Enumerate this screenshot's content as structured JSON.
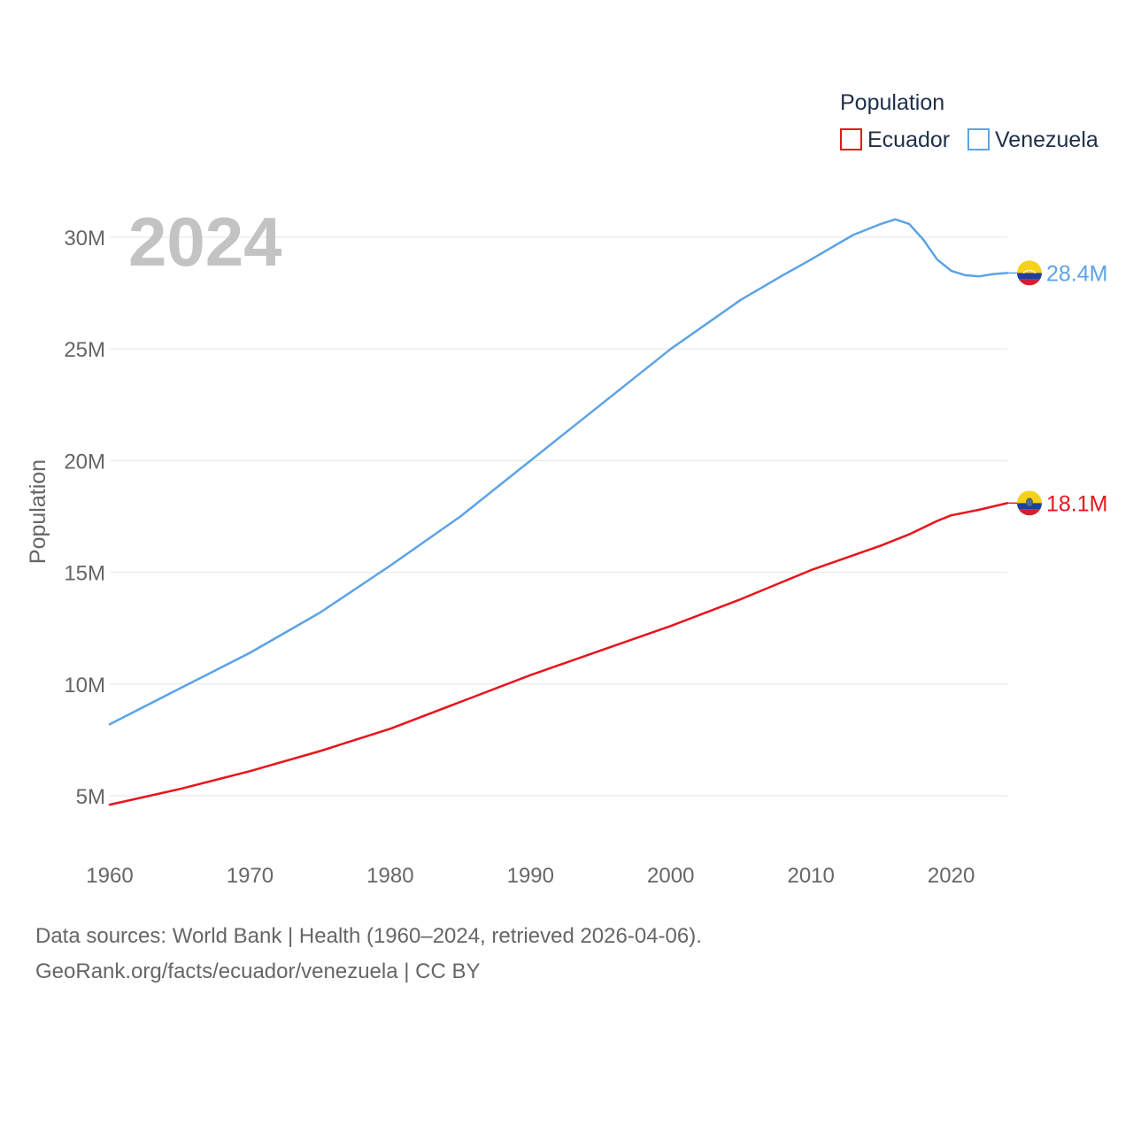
{
  "chart_data": {
    "type": "line",
    "title": "Population",
    "current_year": "2024",
    "xlabel": "",
    "ylabel": "Population",
    "xlim": [
      1960,
      2024
    ],
    "ylim": [
      3000000,
      31500000
    ],
    "x_ticks": [
      1960,
      1970,
      1980,
      1990,
      2000,
      2010,
      2020
    ],
    "y_ticks": [
      {
        "value": 5000000,
        "label": "5M"
      },
      {
        "value": 10000000,
        "label": "10M"
      },
      {
        "value": 15000000,
        "label": "15M"
      },
      {
        "value": 20000000,
        "label": "20M"
      },
      {
        "value": 25000000,
        "label": "25M"
      },
      {
        "value": 30000000,
        "label": "30M"
      }
    ],
    "grid": true,
    "legend": {
      "title": "Population",
      "position": "top-right"
    },
    "series": [
      {
        "name": "Ecuador",
        "color": "#e8141c",
        "end_label": "18.1M",
        "flag_icon": "ecuador-flag-icon",
        "points": [
          [
            1960,
            4600000
          ],
          [
            1965,
            5300000
          ],
          [
            1970,
            6100000
          ],
          [
            1975,
            7000000
          ],
          [
            1980,
            8000000
          ],
          [
            1985,
            9200000
          ],
          [
            1990,
            10400000
          ],
          [
            1995,
            11500000
          ],
          [
            2000,
            12600000
          ],
          [
            2005,
            13800000
          ],
          [
            2010,
            15100000
          ],
          [
            2015,
            16200000
          ],
          [
            2017,
            16700000
          ],
          [
            2019,
            17300000
          ],
          [
            2020,
            17550000
          ],
          [
            2022,
            17800000
          ],
          [
            2024,
            18100000
          ]
        ]
      },
      {
        "name": "Venezuela",
        "color": "#5ca3e6",
        "end_label": "28.4M",
        "flag_icon": "venezuela-flag-icon",
        "points": [
          [
            1960,
            8200000
          ],
          [
            1965,
            9800000
          ],
          [
            1970,
            11400000
          ],
          [
            1975,
            13200000
          ],
          [
            1980,
            15300000
          ],
          [
            1985,
            17500000
          ],
          [
            1990,
            20000000
          ],
          [
            1995,
            22500000
          ],
          [
            2000,
            25000000
          ],
          [
            2005,
            27200000
          ],
          [
            2008,
            28300000
          ],
          [
            2010,
            29000000
          ],
          [
            2013,
            30100000
          ],
          [
            2015,
            30600000
          ],
          [
            2016,
            30800000
          ],
          [
            2017,
            30600000
          ],
          [
            2018,
            29900000
          ],
          [
            2019,
            29000000
          ],
          [
            2020,
            28500000
          ],
          [
            2021,
            28300000
          ],
          [
            2022,
            28250000
          ],
          [
            2023,
            28350000
          ],
          [
            2024,
            28400000
          ]
        ]
      }
    ]
  },
  "footer": {
    "sources": "Data sources: World Bank | Health (1960–2024, retrieved 2026-04-06).",
    "credit": "GeoRank.org/facts/ecuador/venezuela | CC BY"
  }
}
